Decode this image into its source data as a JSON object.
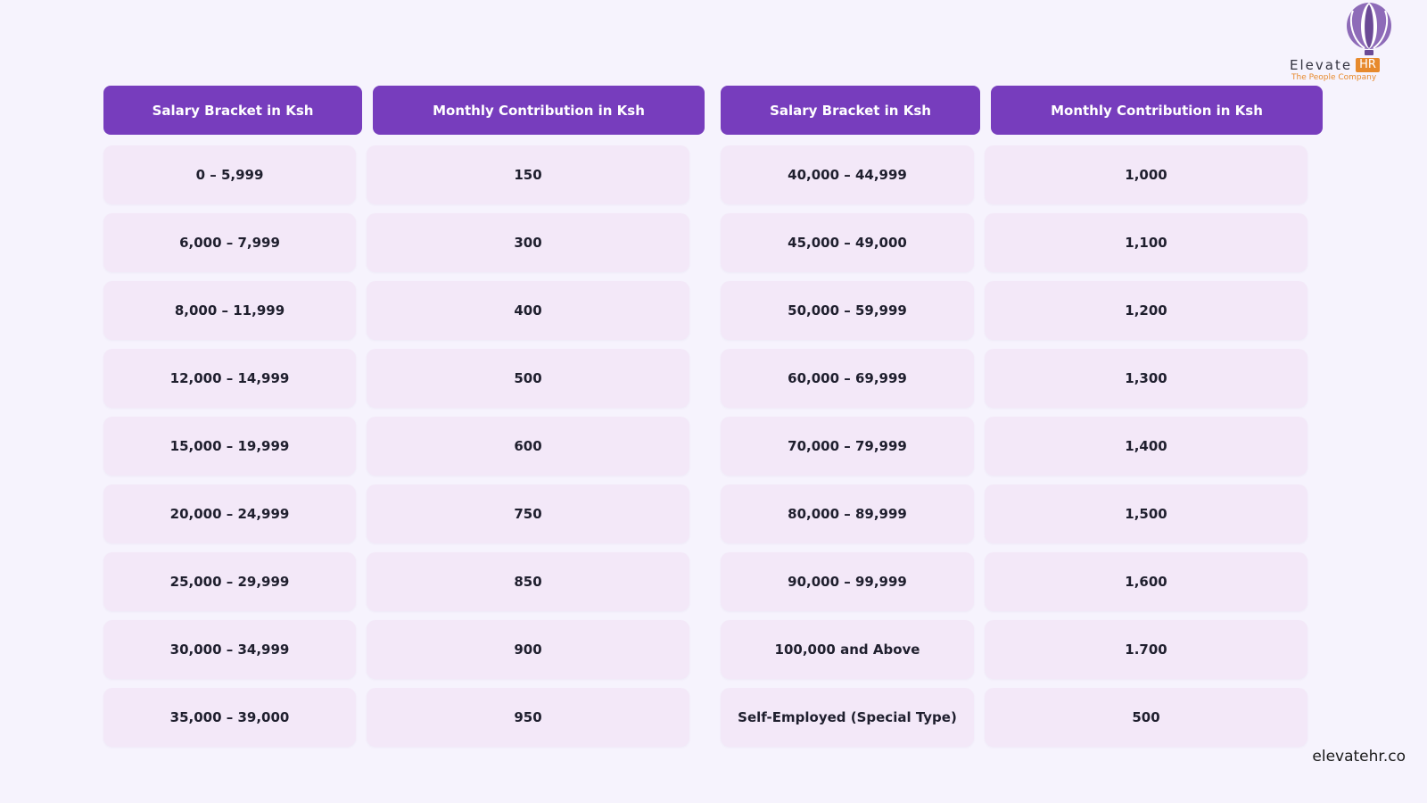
{
  "brand": {
    "logo_word": "Elevate",
    "logo_hr": "HR",
    "tagline": "The People Company",
    "website": "elevatehr.co",
    "header_color": "#773dbd",
    "cell_color": "#f3e8f8",
    "accent_color": "#e78a2d"
  },
  "left_table": {
    "header_salary": "Salary Bracket in Ksh",
    "header_contribution": "Monthly Contribution in Ksh",
    "rows": [
      {
        "salary": "0 – 5,999",
        "contribution": "150"
      },
      {
        "salary": "6,000 – 7,999",
        "contribution": "300"
      },
      {
        "salary": "8,000 – 11,999",
        "contribution": "400"
      },
      {
        "salary": "12,000 – 14,999",
        "contribution": "500"
      },
      {
        "salary": "15,000 – 19,999",
        "contribution": "600"
      },
      {
        "salary": "20,000 – 24,999",
        "contribution": "750"
      },
      {
        "salary": "25,000 – 29,999",
        "contribution": "850"
      },
      {
        "salary": "30,000 – 34,999",
        "contribution": "900"
      },
      {
        "salary": "35,000 – 39,000",
        "contribution": "950"
      }
    ]
  },
  "right_table": {
    "header_salary": "Salary Bracket in Ksh",
    "header_contribution": "Monthly Contribution in Ksh",
    "rows": [
      {
        "salary": "40,000 – 44,999",
        "contribution": "1,000"
      },
      {
        "salary": "45,000 – 49,000",
        "contribution": "1,100"
      },
      {
        "salary": "50,000 – 59,999",
        "contribution": "1,200"
      },
      {
        "salary": "60,000 – 69,999",
        "contribution": "1,300"
      },
      {
        "salary": "70,000 – 79,999",
        "contribution": "1,400"
      },
      {
        "salary": "80,000 – 89,999",
        "contribution": "1,500"
      },
      {
        "salary": "90,000 – 99,999",
        "contribution": "1,600"
      },
      {
        "salary": "100,000 and Above",
        "contribution": "1.700"
      },
      {
        "salary": "Self-Employed (Special Type)",
        "contribution": "500"
      }
    ]
  }
}
